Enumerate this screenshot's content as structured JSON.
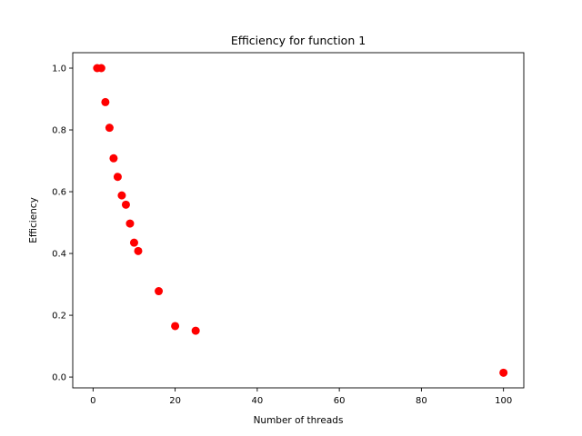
{
  "chart_data": {
    "type": "scatter",
    "title": "Efficiency for function 1",
    "xlabel": "Number of threads",
    "ylabel": "Efficiency",
    "xlim": [
      -4.95,
      104.95
    ],
    "ylim": [
      -0.035,
      1.05
    ],
    "x_ticks": [
      0,
      20,
      40,
      60,
      80,
      100
    ],
    "y_ticks": [
      0.0,
      0.2,
      0.4,
      0.6,
      0.8,
      1.0
    ],
    "x_tick_labels": [
      "0",
      "20",
      "40",
      "60",
      "80",
      "100"
    ],
    "y_tick_labels": [
      "0.0",
      "0.2",
      "0.4",
      "0.6",
      "0.8",
      "1.0"
    ],
    "grid": false,
    "legend": "none",
    "marker_color": "#ff0000",
    "points": [
      {
        "x": 1,
        "y": 1.0
      },
      {
        "x": 2,
        "y": 1.0
      },
      {
        "x": 3,
        "y": 0.89
      },
      {
        "x": 4,
        "y": 0.807
      },
      {
        "x": 5,
        "y": 0.708
      },
      {
        "x": 6,
        "y": 0.648
      },
      {
        "x": 7,
        "y": 0.588
      },
      {
        "x": 8,
        "y": 0.558
      },
      {
        "x": 9,
        "y": 0.497
      },
      {
        "x": 10,
        "y": 0.435
      },
      {
        "x": 11,
        "y": 0.408
      },
      {
        "x": 16,
        "y": 0.278
      },
      {
        "x": 20,
        "y": 0.165
      },
      {
        "x": 25,
        "y": 0.15
      },
      {
        "x": 100,
        "y": 0.014
      }
    ]
  }
}
